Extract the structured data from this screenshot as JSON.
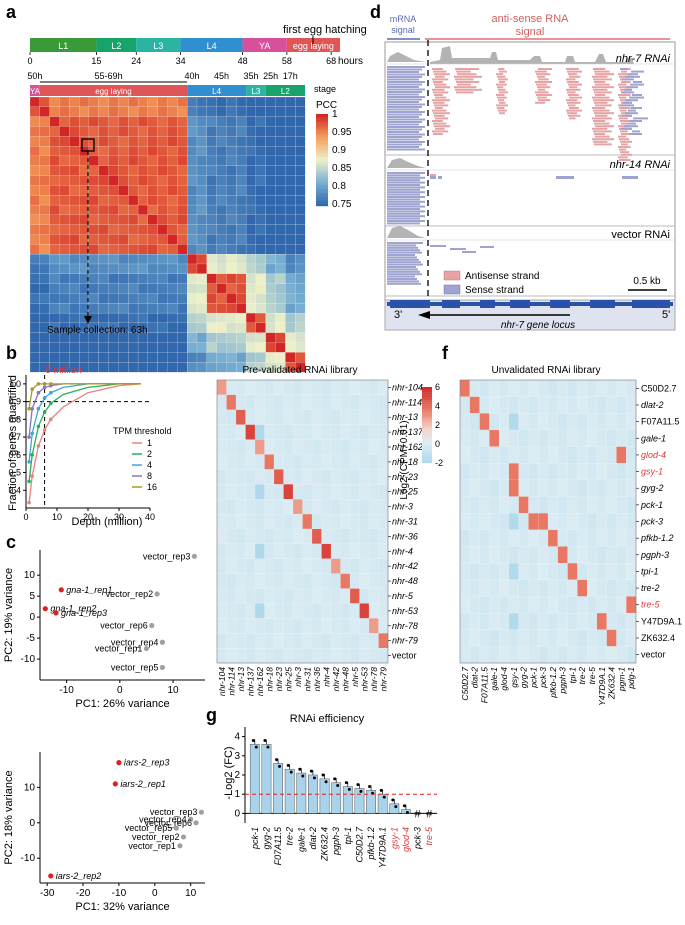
{
  "panels": {
    "a": {
      "letter": "a",
      "timeline": {
        "stages": [
          {
            "label": "L1",
            "color": "#3a9a3a",
            "start": 0,
            "end": 15
          },
          {
            "label": "L2",
            "color": "#18a36a",
            "start": 15,
            "end": 24
          },
          {
            "label": "L3",
            "color": "#2bb3a4",
            "start": 24,
            "end": 34
          },
          {
            "label": "L4",
            "color": "#2f8fd0",
            "start": 34,
            "end": 48
          },
          {
            "label": "YA",
            "color": "#d9509a",
            "start": 48,
            "end": 58
          },
          {
            "label": "egg laying",
            "color": "#e05555",
            "start": 58,
            "end": 70
          }
        ],
        "ticks": [
          "0",
          "15",
          "24",
          "34",
          "48",
          "58",
          "68"
        ],
        "tick_values": [
          0,
          15,
          24,
          34,
          48,
          58,
          68
        ],
        "unit": "hours",
        "annotation": "first egg hatching"
      },
      "heatmap_top": {
        "time_labels": [
          "50h",
          "55-69h",
          "40h",
          "45h",
          "35h",
          "25h",
          "17h"
        ],
        "stage_word": "stage",
        "stage_bar": [
          {
            "label": "YA",
            "color": "#d9509a"
          },
          {
            "label": "egg laying",
            "color": "#e05555"
          },
          {
            "label": "L4",
            "color": "#2f8fd0"
          },
          {
            "label": "L3",
            "color": "#2bb3a4"
          },
          {
            "label": "L2",
            "color": "#18a36a"
          }
        ]
      },
      "legend": {
        "title": "PCC",
        "ticks": [
          "1",
          "0.95",
          "0.9",
          "0.85",
          "0.8",
          "0.75"
        ]
      },
      "caption": "Sample collection: 63h"
    },
    "b": {
      "letter": "b",
      "chart_data": {
        "type": "line",
        "title": "",
        "xlabel": "Depth (million)",
        "ylabel": "Fraction of genes quantified",
        "xlim": [
          0,
          40
        ],
        "ylim": [
          0.3,
          1.05
        ],
        "xticks": [
          "0",
          "10",
          "20",
          "30",
          "40"
        ],
        "yticks": [
          "0.4",
          "0.5",
          "0.6",
          "0.7",
          "0.8",
          "0.9",
          "1.0"
        ],
        "annotation": "6 million",
        "reference_line_y": 0.9,
        "reference_line_x": 6,
        "legend_title": "TPM threshold",
        "series": [
          {
            "name": "1",
            "color": "#e8837a",
            "x": [
              1,
              2,
              4,
              6,
              8,
              12,
              20,
              30,
              37
            ],
            "y": [
              0.33,
              0.48,
              0.65,
              0.74,
              0.8,
              0.87,
              0.95,
              0.99,
              1.0
            ]
          },
          {
            "name": "2",
            "color": "#2aaf5a",
            "x": [
              1,
              2,
              4,
              6,
              8,
              12,
              20,
              30,
              37
            ],
            "y": [
              0.45,
              0.6,
              0.76,
              0.84,
              0.89,
              0.94,
              0.98,
              1.0,
              1.0
            ]
          },
          {
            "name": "4",
            "color": "#3aa8d8",
            "x": [
              1,
              2,
              4,
              6,
              8,
              12,
              20,
              30,
              37
            ],
            "y": [
              0.56,
              0.72,
              0.86,
              0.92,
              0.95,
              0.98,
              1.0,
              1.0,
              1.0
            ]
          },
          {
            "name": "8",
            "color": "#8c72c8",
            "x": [
              1,
              2,
              4,
              6,
              8,
              12,
              20,
              30,
              37
            ],
            "y": [
              0.7,
              0.86,
              0.95,
              0.98,
              0.99,
              1.0,
              1.0,
              1.0,
              1.0
            ]
          },
          {
            "name": "16",
            "color": "#a89a2a",
            "x": [
              1,
              2,
              4,
              6,
              8,
              12,
              20,
              30,
              37
            ],
            "y": [
              0.86,
              0.97,
              1.0,
              1.0,
              1.0,
              1.0,
              1.0,
              1.0,
              1.0
            ]
          }
        ]
      }
    },
    "c": {
      "letter": "c",
      "chart_data": [
        {
          "type": "scatter",
          "xlabel": "PC1: 26% variance",
          "ylabel": "PC2: 19% variance",
          "xlim": [
            -15,
            16
          ],
          "ylim": [
            -15,
            16
          ],
          "xticks": [
            "-10",
            "0",
            "10"
          ],
          "yticks": [
            "-10",
            "-5",
            "0",
            "5",
            "10"
          ],
          "points": [
            {
              "label": "vector_rep3",
              "x": 14,
              "y": 14.5,
              "group": "vector"
            },
            {
              "label": "gna-1_rep1",
              "x": -11,
              "y": 6.5,
              "group": "treat"
            },
            {
              "label": "vector_rep2",
              "x": 7,
              "y": 5.5,
              "group": "vector"
            },
            {
              "label": "gna-1_rep2",
              "x": -14,
              "y": 2,
              "group": "treat"
            },
            {
              "label": "gna-1_rep3",
              "x": -12,
              "y": 1,
              "group": "treat"
            },
            {
              "label": "vector_rep6",
              "x": 6,
              "y": -2,
              "group": "vector"
            },
            {
              "label": "vector_rep4",
              "x": 8,
              "y": -6,
              "group": "vector"
            },
            {
              "label": "vector_rep1",
              "x": 5,
              "y": -7.5,
              "group": "vector"
            },
            {
              "label": "vector_rep5",
              "x": 8,
              "y": -12,
              "group": "vector"
            }
          ]
        },
        {
          "type": "scatter",
          "xlabel": "PC1: 32% variance",
          "ylabel": "PC2: 18% variance",
          "xlim": [
            -32,
            14
          ],
          "ylim": [
            -17,
            20
          ],
          "xticks": [
            "-30",
            "-20",
            "-10",
            "0",
            "10"
          ],
          "yticks": [
            "-10",
            "0",
            "10"
          ],
          "points": [
            {
              "label": "iars-2_rep3",
              "x": -10,
              "y": 17,
              "group": "treat"
            },
            {
              "label": "iars-2_rep1",
              "x": -11,
              "y": 11,
              "group": "treat"
            },
            {
              "label": "vector_rep3",
              "x": 13,
              "y": 3,
              "group": "vector"
            },
            {
              "label": "vector_rep4",
              "x": 10,
              "y": 1,
              "group": "vector"
            },
            {
              "label": "vector_rep6",
              "x": 11.5,
              "y": 0,
              "group": "vector"
            },
            {
              "label": "vector_rep5",
              "x": 6,
              "y": -1.5,
              "group": "vector"
            },
            {
              "label": "vector_rep2",
              "x": 8,
              "y": -4,
              "group": "vector"
            },
            {
              "label": "vector_rep1",
              "x": 7,
              "y": -6.5,
              "group": "vector"
            },
            {
              "label": "iars-2_rep2",
              "x": -29,
              "y": -15,
              "group": "treat"
            }
          ]
        }
      ]
    },
    "d": {
      "letter": "d",
      "mrna_label_line1": "mRNA",
      "mrna_label_line2": "signal",
      "antisense_label_line1": "anti-sense RNA",
      "antisense_label_line2": "signal",
      "track_titles": [
        "nhr-7 RNAi",
        "nhr-14 RNAi",
        "vector RNAi"
      ],
      "legend_antisense": "Antisense strand",
      "legend_sense": "Sense strand",
      "scalebar": "0.5 kb",
      "locus_label": "nhr-7 gene locus",
      "end3": "3'",
      "end5": "5'"
    },
    "e": {
      "letter": "e",
      "title": "Pre-validated RNAi library",
      "row_labels": [
        "nhr-104",
        "nhr-114",
        "nhr-13",
        "nhr-137",
        "nhr-162",
        "nhr-18",
        "nhr-23",
        "nhr-25",
        "nhr-3",
        "nhr-31",
        "nhr-36",
        "nhr-4",
        "nhr-42",
        "nhr-48",
        "nhr-5",
        "nhr-53",
        "nhr-78",
        "nhr-79",
        "vector"
      ],
      "col_labels": [
        "nhr-104",
        "nhr-114",
        "nhr-13",
        "nhr-137",
        "nhr-162",
        "nhr-18",
        "nhr-23",
        "nhr-25",
        "nhr-3",
        "nhr-31",
        "nhr-36",
        "nhr-4",
        "nhr-42",
        "nhr-48",
        "nhr-5",
        "nhr-53",
        "nhr-78",
        "nhr-79"
      ],
      "legend_title": "Log2 (CPM+0.01)",
      "legend_ticks": [
        "6",
        "4",
        "2",
        "0",
        "-2"
      ]
    },
    "f": {
      "letter": "f",
      "title": "Unvalidated RNAi library",
      "row_labels": [
        "C50D2.7",
        "dlat-2",
        "F07A11.5",
        "gale-1",
        "glod-4",
        "gsy-1",
        "gyg-2",
        "pck-1",
        "pck-3",
        "pfkb-1.2",
        "pgph-3",
        "tpi-1",
        "tre-2",
        "tre-5",
        "Y47D9A.1",
        "ZK632.4",
        "vector"
      ],
      "red_rows": [
        "glod-4",
        "gsy-1",
        "tre-5"
      ],
      "col_labels": [
        "C50D2.7",
        "dlat-2",
        "F07A11.5",
        "gale-1",
        "glod-4",
        "gsy-1",
        "gyg-2",
        "pck-1",
        "pck-3",
        "pfkb-1.2",
        "pgph-3",
        "tpi-1",
        "tre-2",
        "tre-5",
        "Y47D9A.1",
        "ZK632.4",
        "pgm-1",
        "pdg-1"
      ],
      "red_color": "#d93a3a"
    },
    "g": {
      "letter": "g",
      "chart_data": {
        "type": "bar",
        "title": "RNAi efficiency",
        "ylabel": "-Log2 (FC)",
        "ylim": [
          -0.5,
          4.5
        ],
        "yticks": [
          "0",
          "1",
          "2",
          "3",
          "4"
        ],
        "reference_line_y": 1,
        "categories": [
          "pck-1",
          "gyg-2",
          "F07A11.5",
          "tre-2",
          "gale-1",
          "dlat-2",
          "ZK632.4",
          "pgph-3",
          "tpi-1",
          "C50D2.7",
          "pfkb-1.2",
          "Y47D9A.1",
          "gsy-1",
          "glod-4",
          "pck-3",
          "tre-5"
        ],
        "values": [
          3.6,
          3.6,
          2.6,
          2.3,
          2.1,
          2.0,
          1.8,
          1.6,
          1.4,
          1.3,
          1.2,
          1.0,
          0.5,
          0.2,
          null,
          null
        ],
        "red_categories": [
          "gsy-1",
          "glod-4",
          "tre-5"
        ],
        "na_marker": "#",
        "bar_color": "#a9d3ea"
      }
    }
  }
}
